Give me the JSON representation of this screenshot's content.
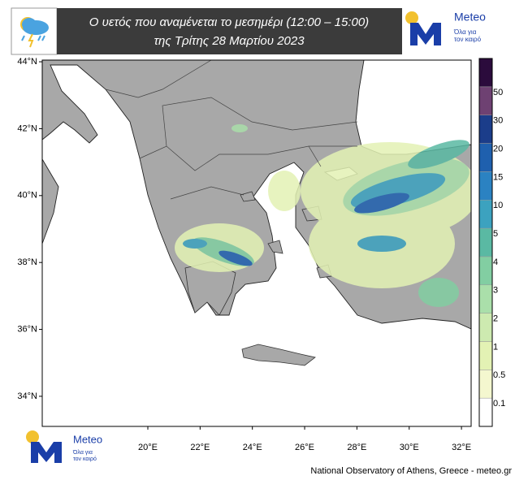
{
  "header": {
    "title_line1": "Ο υετός που αναμένεται το μεσημέρι (12:00 – 15:00)",
    "title_line2": "της Τρίτης 28 Μαρτίου 2023"
  },
  "logo": {
    "name": "Meteo",
    "tagline_line1": "Όλα για",
    "tagline_line2": "τον καιρό"
  },
  "map": {
    "lon_range": [
      15.96,
      32.37
    ],
    "lat_range": [
      33.1,
      44.05
    ],
    "lat_ticks": [
      {
        "value": 44,
        "label": "44°N"
      },
      {
        "value": 42,
        "label": "42°N"
      },
      {
        "value": 40,
        "label": "40°N"
      },
      {
        "value": 38,
        "label": "38°N"
      },
      {
        "value": 36,
        "label": "36°N"
      },
      {
        "value": 34,
        "label": "34°N"
      }
    ],
    "lon_ticks": [
      {
        "value": 20,
        "label": "20°E"
      },
      {
        "value": 22,
        "label": "22°E"
      },
      {
        "value": 24,
        "label": "24°E"
      },
      {
        "value": 26,
        "label": "26°E"
      },
      {
        "value": 28,
        "label": "28°E"
      },
      {
        "value": 30,
        "label": "30°E"
      },
      {
        "value": 32,
        "label": "32°E"
      }
    ]
  },
  "legend": {
    "levels": [
      0.1,
      0.5,
      1,
      2,
      3,
      4,
      5,
      10,
      15,
      20,
      30,
      50
    ],
    "colors": [
      "#ffffff",
      "#f4f7cf",
      "#e3f2b4",
      "#cdeab0",
      "#aadfaa",
      "#82cea2",
      "#5ab9a3",
      "#3ca2bf",
      "#2b82c2",
      "#1f60ae",
      "#1b3d8a",
      "#6e4172",
      "#2b0b3c"
    ]
  },
  "footer": "National Observatory of Athens, Greece - meteo.gr"
}
